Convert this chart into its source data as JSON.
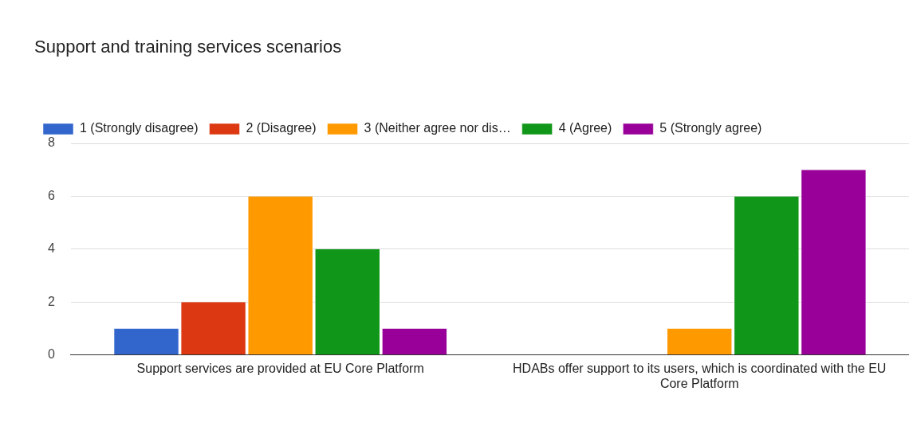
{
  "chart_data": {
    "type": "bar",
    "title": "Support and training services scenarios",
    "categories": [
      "Support services are provided at EU Core Platform",
      "HDABs offer support to its users, which is coordinated with the EU Core Platform"
    ],
    "series": [
      {
        "name": "1 (Strongly disagree)",
        "color": "#3366cc",
        "values": [
          1,
          0
        ]
      },
      {
        "name": "2 (Disagree)",
        "color": "#dc3912",
        "values": [
          2,
          0
        ]
      },
      {
        "name": "3 (Neither agree nor dis…",
        "color": "#ff9900",
        "values": [
          6,
          1
        ]
      },
      {
        "name": "4 (Agree)",
        "color": "#109618",
        "values": [
          4,
          6
        ]
      },
      {
        "name": "5 (Strongly agree)",
        "color": "#990099",
        "values": [
          1,
          7
        ]
      }
    ],
    "ylim": [
      0,
      8
    ],
    "yticks": [
      0,
      2,
      4,
      6,
      8
    ],
    "grid": "y",
    "legend": "top"
  }
}
